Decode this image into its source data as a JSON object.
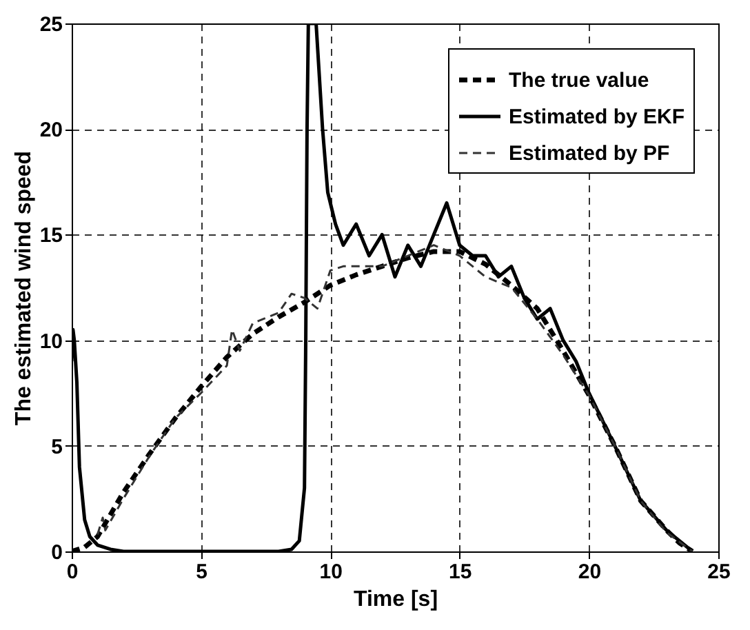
{
  "chart_data": {
    "type": "line",
    "xlabel": "Time [s]",
    "ylabel": "The estimated wind speed",
    "xlim": [
      0,
      25
    ],
    "ylim": [
      0,
      25
    ],
    "xticks": [
      0,
      5,
      10,
      15,
      20,
      25
    ],
    "yticks": [
      0,
      5,
      10,
      15,
      20,
      25
    ],
    "grid": true,
    "legend": "top right",
    "series": [
      {
        "name": "The true value",
        "color": "#000000",
        "line_style": "dashed",
        "x": [
          0,
          0.5,
          1,
          2,
          3,
          4,
          5,
          6,
          7,
          8,
          9,
          10,
          11,
          12,
          13,
          14,
          15,
          16,
          17,
          18,
          19,
          20,
          21,
          22,
          23,
          23.5,
          24
        ],
        "values": [
          0,
          0.2,
          0.7,
          2.8,
          4.6,
          6.3,
          7.8,
          9.2,
          10.3,
          11.1,
          11.8,
          12.6,
          13.1,
          13.5,
          13.9,
          14.2,
          14.2,
          13.6,
          12.6,
          11.5,
          9.5,
          7.4,
          5.0,
          2.4,
          1.0,
          0.4,
          0
        ]
      },
      {
        "name": "Estimated by EKF",
        "color": "#000000",
        "line_style": "solid",
        "x": [
          0,
          0.05,
          0.1,
          0.2,
          0.3,
          0.5,
          0.7,
          1,
          1.5,
          2,
          4,
          6,
          8,
          8.5,
          8.8,
          9,
          9.05,
          9.1,
          9.15,
          9.45,
          9.7,
          9.9,
          10.2,
          10.5,
          11,
          11.5,
          12,
          12.5,
          13,
          13.5,
          14,
          14.5,
          15,
          15.5,
          16,
          16.5,
          17,
          17.5,
          18,
          18.5,
          19,
          19.5,
          20,
          21,
          22,
          23,
          24
        ],
        "values": [
          9,
          10.5,
          10,
          8,
          4,
          1.5,
          0.7,
          0.3,
          0.1,
          0,
          0,
          0,
          0,
          0.1,
          0.5,
          3,
          10,
          20,
          25,
          25,
          20,
          17,
          15.5,
          14.5,
          15.5,
          14,
          15,
          13,
          14.5,
          13.5,
          15,
          16.5,
          14.5,
          14,
          14,
          13,
          13.5,
          12,
          11,
          11.5,
          10,
          9,
          7.5,
          5,
          2.4,
          1,
          0
        ]
      },
      {
        "name": "Estimated by PF",
        "color": "#333333",
        "line_style": "dashed",
        "x": [
          1,
          1.2,
          1.3,
          2,
          3,
          4,
          5,
          6,
          6.2,
          6.5,
          7,
          8,
          8.5,
          9,
          9.5,
          10,
          10.5,
          11,
          12,
          13,
          14,
          15,
          16,
          17,
          18,
          19,
          20,
          21,
          22,
          23,
          24
        ],
        "values": [
          0.8,
          1.6,
          1,
          2.5,
          4.5,
          6.3,
          7.5,
          8.8,
          10.5,
          9.5,
          10.8,
          11.3,
          12.2,
          12,
          11.5,
          13.3,
          13.5,
          13.5,
          13.5,
          14,
          14.5,
          14,
          13,
          12.5,
          11,
          9.3,
          7.4,
          5,
          2.4,
          0.9,
          0
        ]
      }
    ]
  }
}
